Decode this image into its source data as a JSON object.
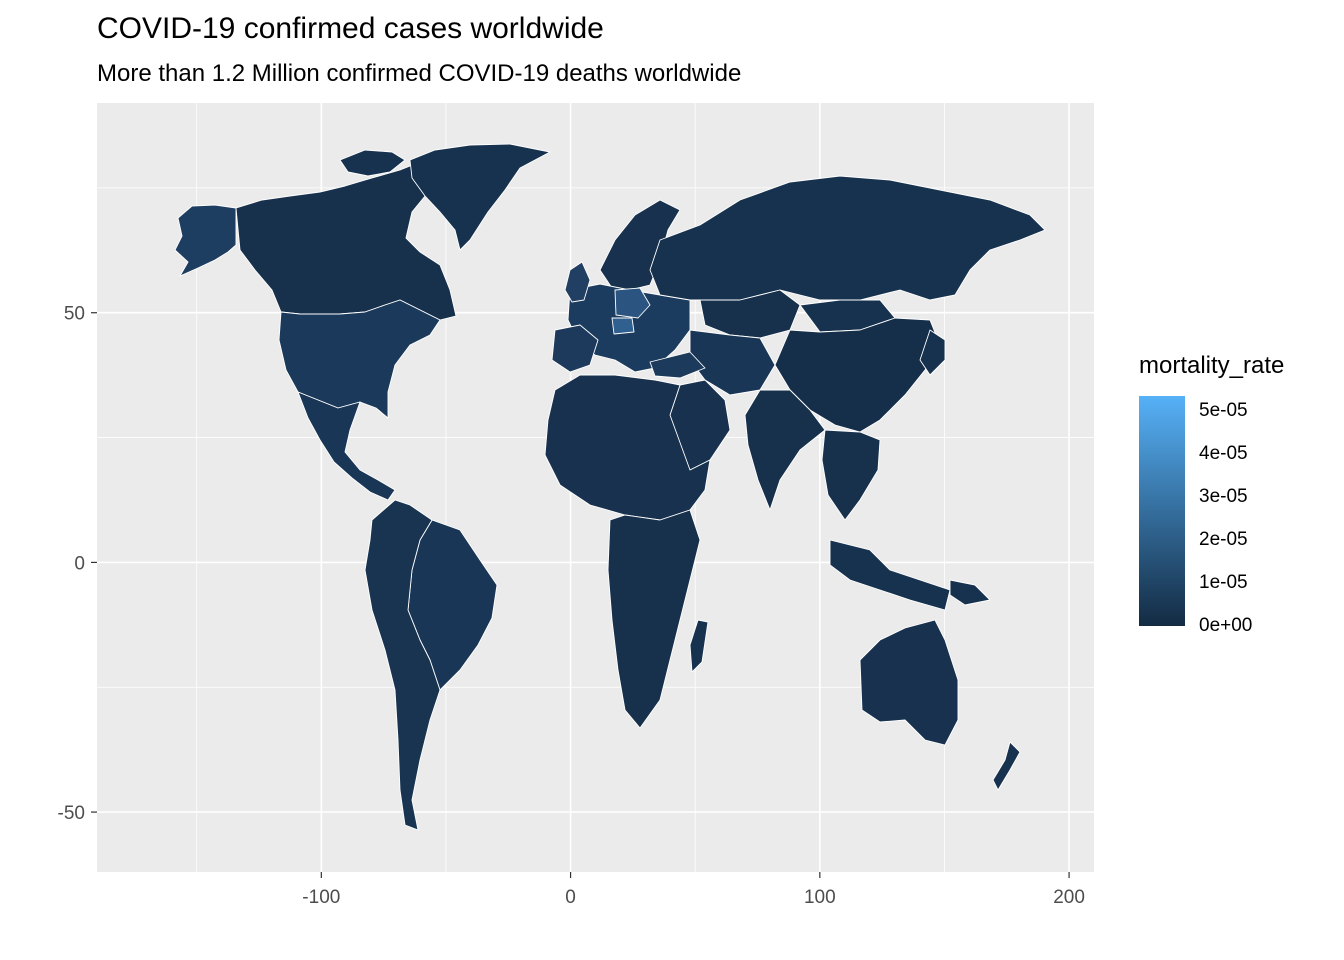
{
  "title": "COVID-19 confirmed cases worldwide",
  "subtitle": "More than 1.2 Million confirmed COVID-19 deaths worldwide",
  "chart_data": {
    "type": "choropleth map",
    "fill_variable": "mortality_rate",
    "x_ticks": [
      "-100",
      "0",
      "100",
      "200"
    ],
    "y_ticks": [
      "50",
      "0",
      "-50"
    ],
    "xlim": [
      -190,
      210
    ],
    "ylim": [
      -62,
      92
    ],
    "legend": {
      "title": "mortality_rate",
      "labels": [
        "5e-05",
        "4e-05",
        "3e-05",
        "2e-05",
        "1e-05",
        "0e+00"
      ],
      "low_color": "#132B43",
      "high_color": "#56B1F7",
      "placement": "right"
    },
    "panel_background": "#EBEBEB",
    "grid": true,
    "border_color": "#FFFFFF"
  }
}
